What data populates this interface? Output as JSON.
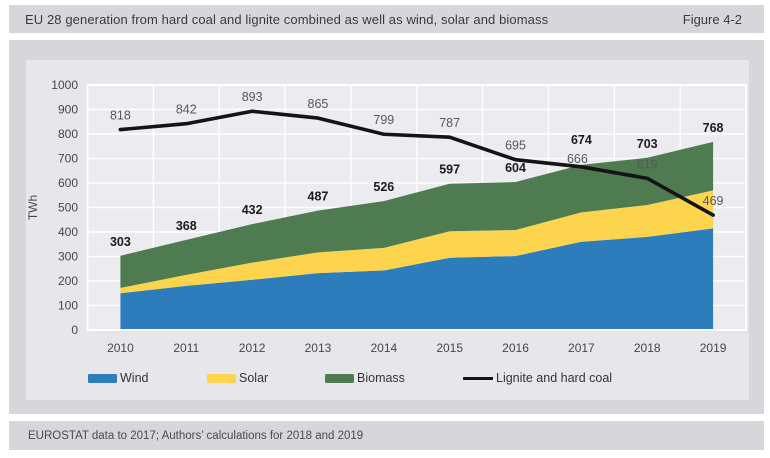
{
  "header": {
    "title": "EU 28 generation from hard coal and lignite combined as well as wind, solar and biomass",
    "figure_label": "Figure 4-2"
  },
  "footer": {
    "source_note": "EUROSTAT data to 2017; Authors’ calculations for 2018 and 2019"
  },
  "colors": {
    "panel": "#d7d7db",
    "figure_bg": "#e6e6eb",
    "plot_bg": "#ebebf0",
    "grid": "#ffffff",
    "wind": "#2d7dbd",
    "solar": "#fcd44e",
    "biomass": "#4e7c50",
    "line": "#141414",
    "axis_text": "#474747",
    "label_muted": "#58585a",
    "label_strong": "#1b1b1b"
  },
  "chart_data": {
    "type": "area",
    "stacked": true,
    "title": "EU 28 generation from hard coal and lignite combined as well as wind, solar and biomass",
    "xlabel": "",
    "ylabel": "TWh",
    "x": [
      2010,
      2011,
      2012,
      2013,
      2014,
      2015,
      2016,
      2017,
      2018,
      2019
    ],
    "series": [
      {
        "name": "Wind",
        "kind": "area",
        "color_key": "wind",
        "values": [
          150,
          180,
          205,
          232,
          243,
          295,
          302,
          360,
          380,
          415
        ]
      },
      {
        "name": "Solar",
        "kind": "area",
        "color_key": "solar",
        "values": [
          22,
          45,
          70,
          85,
          92,
          108,
          106,
          120,
          130,
          155
        ]
      },
      {
        "name": "Biomass",
        "kind": "area",
        "color_key": "biomass",
        "values": [
          131,
          143,
          157,
          170,
          191,
          194,
          196,
          194,
          193,
          198
        ]
      },
      {
        "name": "Lignite and hard coal",
        "kind": "line",
        "color_key": "line",
        "values": [
          818,
          842,
          893,
          865,
          799,
          787,
          695,
          666,
          619,
          469
        ],
        "labeled": true
      }
    ],
    "stack_total_labels": [
      303,
      368,
      432,
      487,
      526,
      597,
      604,
      674,
      703,
      768
    ],
    "ylim": [
      0,
      1000
    ],
    "ytick_step": 100,
    "grid": true,
    "legend_position": "bottom",
    "label_offsets": {
      "line": {
        "2017": [
          -4,
          6
        ]
      },
      "total": {
        "2017": [
          0,
          -11
        ]
      }
    }
  }
}
